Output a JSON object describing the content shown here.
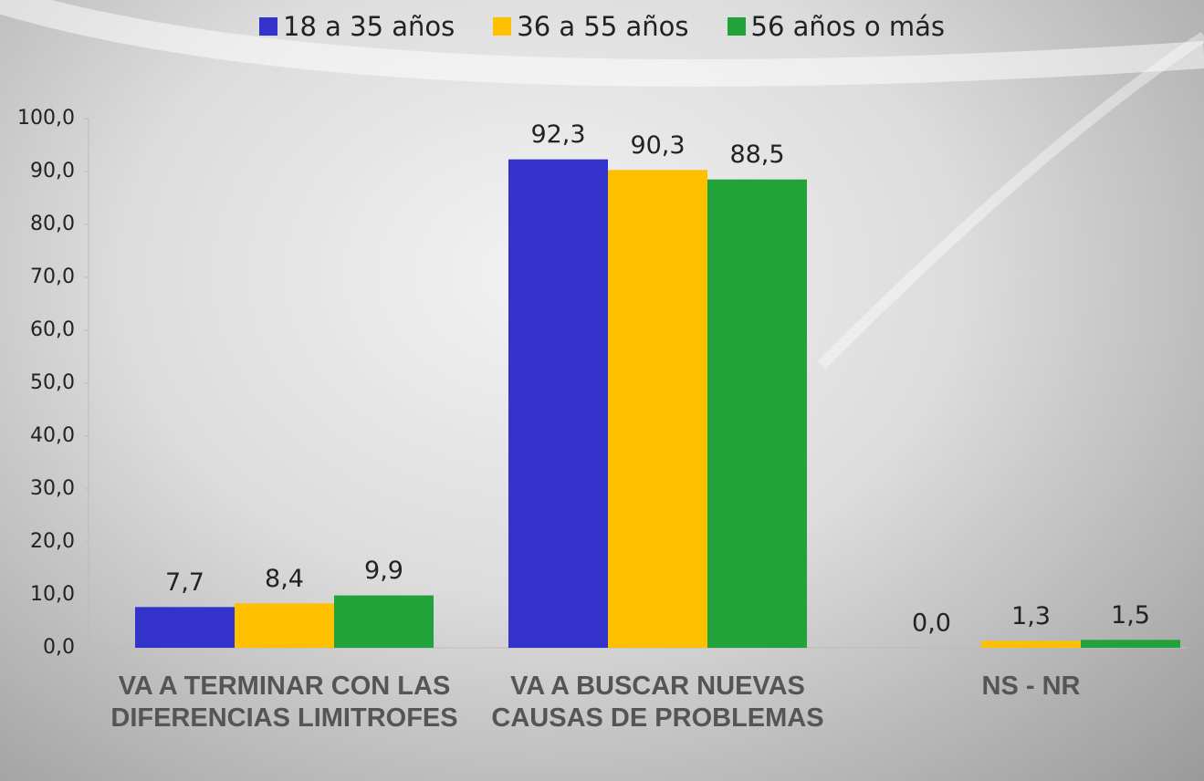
{
  "chart_data": {
    "type": "bar",
    "categories": [
      "VA A TERMINAR CON LAS DIFERENCIAS LIMITROFES",
      "VA A BUSCAR NUEVAS CAUSAS DE PROBLEMAS",
      "NS - NR"
    ],
    "series": [
      {
        "name": "18 a 35 años",
        "color": "#3333cc",
        "values": [
          7.7,
          92.3,
          0.0
        ],
        "value_labels": [
          "7,7",
          "92,3",
          "0,0"
        ]
      },
      {
        "name": "36 a 55 años",
        "color": "#ffc000",
        "values": [
          8.4,
          90.3,
          1.3
        ],
        "value_labels": [
          "8,4",
          "90,3",
          "1,3"
        ]
      },
      {
        "name": "56 años o más",
        "color": "#22a33a",
        "values": [
          9.9,
          88.5,
          1.5
        ],
        "value_labels": [
          "9,9",
          "88,5",
          "1,5"
        ]
      }
    ],
    "ylim": [
      0,
      100
    ],
    "yticks": [
      {
        "value": 0,
        "label": "0,0"
      },
      {
        "value": 10,
        "label": "10,0"
      },
      {
        "value": 20,
        "label": "20,0"
      },
      {
        "value": 30,
        "label": "30,0"
      },
      {
        "value": 40,
        "label": "40,0"
      },
      {
        "value": 50,
        "label": "50,0"
      },
      {
        "value": 60,
        "label": "60,0"
      },
      {
        "value": 70,
        "label": "70,0"
      },
      {
        "value": 80,
        "label": "80,0"
      },
      {
        "value": 90,
        "label": "90,0"
      },
      {
        "value": 100,
        "label": "100,0"
      }
    ],
    "legend": "top"
  }
}
